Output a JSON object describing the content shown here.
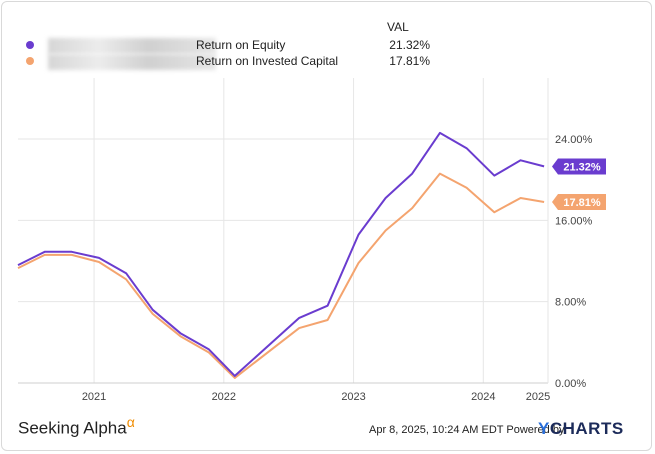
{
  "chart_data": {
    "type": "line",
    "legend_header": "VAL",
    "series": [
      {
        "name": "Return on Equity",
        "value_label": "21.32%",
        "color": "#6a3ccf",
        "points": [
          [
            "2020-06-01",
            11.6
          ],
          [
            "2020-08-15",
            12.9
          ],
          [
            "2020-10-30",
            12.9
          ],
          [
            "2021-01-15",
            12.3
          ],
          [
            "2021-04-01",
            10.8
          ],
          [
            "2021-06-15",
            7.2
          ],
          [
            "2021-09-01",
            4.9
          ],
          [
            "2021-11-20",
            3.3
          ],
          [
            "2022-02-01",
            0.7
          ],
          [
            "2022-08-01",
            6.4
          ],
          [
            "2022-10-20",
            7.6
          ],
          [
            "2023-01-15",
            14.6
          ],
          [
            "2023-04-01",
            18.2
          ],
          [
            "2023-06-15",
            20.6
          ],
          [
            "2023-09-01",
            24.6
          ],
          [
            "2023-11-15",
            23.1
          ],
          [
            "2024-02-01",
            20.4
          ],
          [
            "2024-04-15",
            21.9
          ],
          [
            "2024-06-20",
            21.3
          ]
        ]
      },
      {
        "name": "Return on Invested Capital",
        "value_label": "17.81%",
        "color": "#f4a46f",
        "points": [
          [
            "2020-06-01",
            11.3
          ],
          [
            "2020-08-15",
            12.6
          ],
          [
            "2020-10-30",
            12.6
          ],
          [
            "2021-01-15",
            11.9
          ],
          [
            "2021-04-01",
            10.2
          ],
          [
            "2021-06-15",
            6.8
          ],
          [
            "2021-09-01",
            4.6
          ],
          [
            "2021-11-20",
            3.0
          ],
          [
            "2022-02-01",
            0.5
          ],
          [
            "2022-08-01",
            5.4
          ],
          [
            "2022-10-20",
            6.2
          ],
          [
            "2023-01-15",
            11.8
          ],
          [
            "2023-04-01",
            15.0
          ],
          [
            "2023-06-15",
            17.2
          ],
          [
            "2023-09-01",
            20.6
          ],
          [
            "2023-11-15",
            19.2
          ],
          [
            "2024-02-01",
            16.8
          ],
          [
            "2024-04-15",
            18.2
          ],
          [
            "2024-06-20",
            17.8
          ]
        ]
      }
    ],
    "x_ticks": [
      "2021",
      "2022",
      "2023",
      "2024",
      "2025"
    ],
    "y_ticks": [
      "0.00%",
      "8.00%",
      "16.00%",
      "24.00%"
    ],
    "ylim": [
      0,
      30
    ],
    "xlim": [
      "2020-06-01",
      "2024-07-01"
    ],
    "grid": true
  },
  "legend_blurred_entity_names": [
    "",
    ""
  ],
  "footer": {
    "watermark": "Seeking Alpha",
    "watermark_symbol": "α",
    "timestamp": "Apr 8, 2025, 10:24 AM EDT Powered by",
    "brand_prefix": "Y",
    "brand_rest": "CHARTS"
  }
}
